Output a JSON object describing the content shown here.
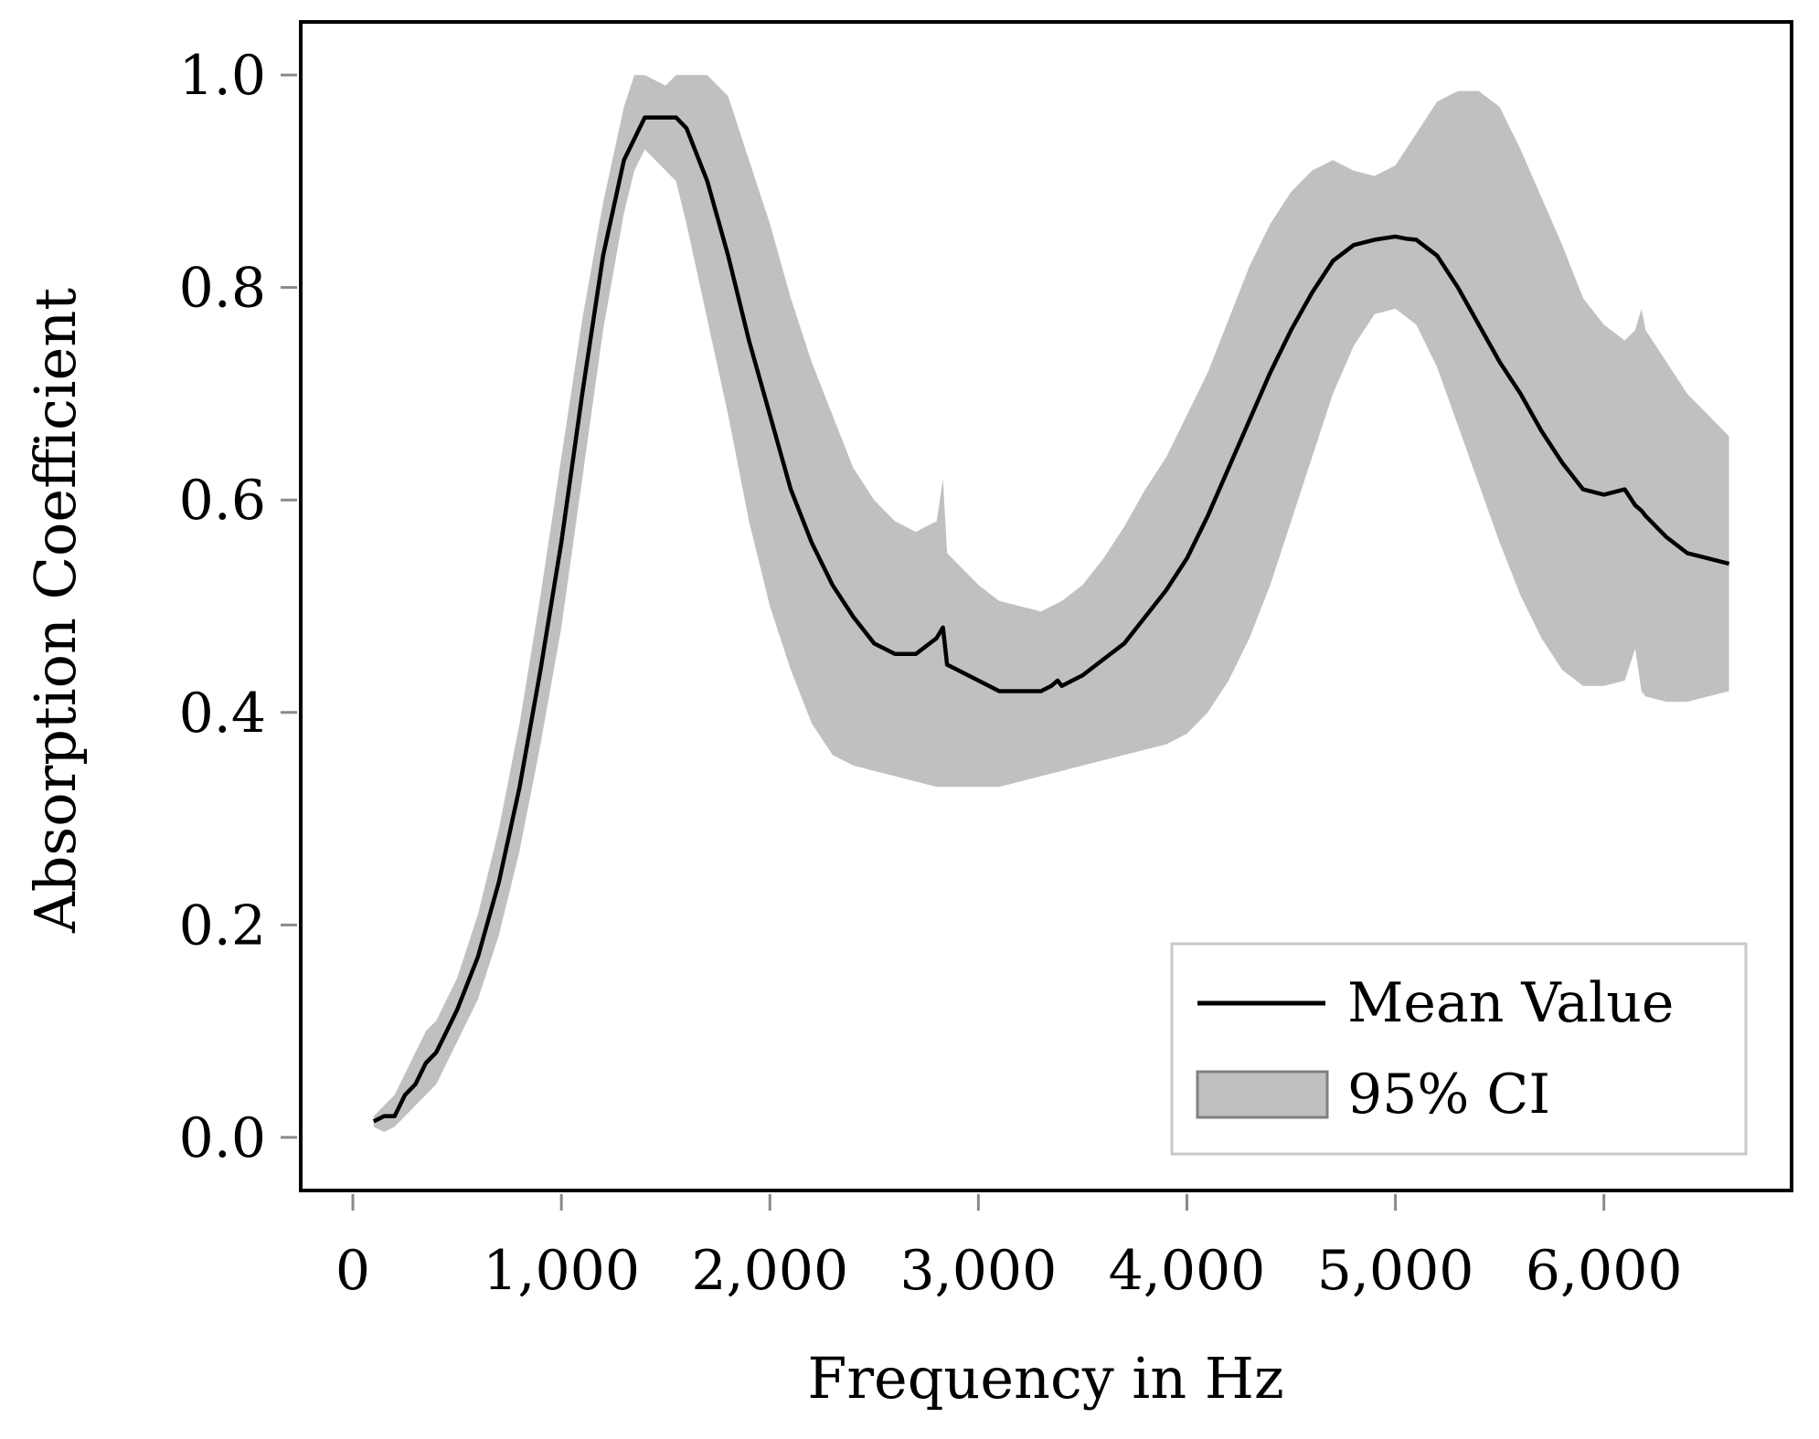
{
  "chart_data": {
    "type": "line",
    "title": "",
    "xlabel": "Frequency in Hz",
    "ylabel": "Absorption Coefficient",
    "xlim": [
      -250,
      6900
    ],
    "ylim": [
      -0.05,
      1.05
    ],
    "xticks": [
      0,
      1000,
      2000,
      3000,
      4000,
      5000,
      6000
    ],
    "xtick_labels": [
      "0",
      "1,000",
      "2,000",
      "3,000",
      "4,000",
      "5,000",
      "6,000"
    ],
    "yticks": [
      0.0,
      0.2,
      0.4,
      0.6,
      0.8,
      1.0
    ],
    "ytick_labels": [
      "0.0",
      "0.2",
      "0.4",
      "0.6",
      "0.8",
      "1.0"
    ],
    "grid": false,
    "legend_position": "bottom-right",
    "legend": [
      "Mean Value",
      "95% CI"
    ],
    "series": [
      {
        "name": "Mean Value",
        "kind": "line",
        "color": "#000000",
        "x": [
          100,
          150,
          200,
          250,
          300,
          350,
          400,
          450,
          500,
          600,
          700,
          800,
          900,
          1000,
          1100,
          1200,
          1300,
          1400,
          1500,
          1550,
          1600,
          1700,
          1800,
          1900,
          2000,
          2100,
          2200,
          2300,
          2400,
          2500,
          2600,
          2700,
          2800,
          2830,
          2850,
          2900,
          3000,
          3100,
          3200,
          3300,
          3350,
          3380,
          3400,
          3500,
          3600,
          3700,
          3800,
          3900,
          4000,
          4100,
          4200,
          4300,
          4400,
          4500,
          4600,
          4700,
          4800,
          4900,
          5000,
          5050,
          5100,
          5200,
          5300,
          5400,
          5500,
          5600,
          5700,
          5800,
          5900,
          6000,
          6100,
          6150,
          6180,
          6200,
          6300,
          6400,
          6500,
          6600
        ],
        "y": [
          0.015,
          0.02,
          0.02,
          0.04,
          0.05,
          0.07,
          0.08,
          0.1,
          0.12,
          0.17,
          0.24,
          0.33,
          0.44,
          0.56,
          0.7,
          0.83,
          0.92,
          0.96,
          0.96,
          0.96,
          0.95,
          0.9,
          0.83,
          0.75,
          0.68,
          0.61,
          0.56,
          0.52,
          0.49,
          0.465,
          0.455,
          0.455,
          0.47,
          0.48,
          0.445,
          0.44,
          0.43,
          0.42,
          0.42,
          0.42,
          0.425,
          0.43,
          0.425,
          0.435,
          0.45,
          0.465,
          0.49,
          0.515,
          0.545,
          0.585,
          0.63,
          0.675,
          0.72,
          0.76,
          0.795,
          0.825,
          0.84,
          0.845,
          0.848,
          0.846,
          0.845,
          0.83,
          0.8,
          0.765,
          0.73,
          0.7,
          0.665,
          0.635,
          0.61,
          0.605,
          0.61,
          0.595,
          0.59,
          0.585,
          0.565,
          0.55,
          0.545,
          0.54
        ]
      },
      {
        "name": "95% CI",
        "kind": "band",
        "color": "#c0c0c0",
        "edge_color": "#808080",
        "x": [
          100,
          150,
          200,
          250,
          300,
          350,
          400,
          450,
          500,
          600,
          700,
          800,
          900,
          1000,
          1100,
          1200,
          1300,
          1350,
          1400,
          1500,
          1550,
          1600,
          1700,
          1800,
          1900,
          2000,
          2100,
          2200,
          2300,
          2400,
          2500,
          2600,
          2700,
          2800,
          2830,
          2850,
          2900,
          3000,
          3100,
          3200,
          3300,
          3400,
          3500,
          3600,
          3700,
          3800,
          3900,
          4000,
          4100,
          4200,
          4300,
          4400,
          4500,
          4600,
          4700,
          4800,
          4900,
          5000,
          5100,
          5200,
          5300,
          5400,
          5500,
          5600,
          5700,
          5800,
          5900,
          6000,
          6100,
          6150,
          6180,
          6200,
          6300,
          6400,
          6500,
          6600
        ],
        "upper": [
          0.02,
          0.03,
          0.04,
          0.06,
          0.08,
          0.1,
          0.11,
          0.13,
          0.15,
          0.21,
          0.29,
          0.39,
          0.51,
          0.64,
          0.77,
          0.88,
          0.97,
          1.0,
          1.0,
          0.99,
          1.0,
          1.0,
          1.0,
          0.98,
          0.92,
          0.86,
          0.79,
          0.73,
          0.68,
          0.63,
          0.6,
          0.58,
          0.57,
          0.58,
          0.62,
          0.55,
          0.54,
          0.52,
          0.505,
          0.5,
          0.495,
          0.505,
          0.52,
          0.545,
          0.575,
          0.61,
          0.64,
          0.68,
          0.72,
          0.77,
          0.82,
          0.86,
          0.89,
          0.91,
          0.92,
          0.91,
          0.905,
          0.915,
          0.945,
          0.975,
          0.985,
          0.985,
          0.97,
          0.93,
          0.885,
          0.84,
          0.79,
          0.765,
          0.75,
          0.76,
          0.78,
          0.76,
          0.73,
          0.7,
          0.68,
          0.66
        ],
        "lower": [
          0.01,
          0.005,
          0.01,
          0.02,
          0.03,
          0.04,
          0.05,
          0.07,
          0.09,
          0.13,
          0.19,
          0.27,
          0.37,
          0.48,
          0.62,
          0.76,
          0.87,
          0.91,
          0.93,
          0.91,
          0.9,
          0.86,
          0.77,
          0.68,
          0.58,
          0.5,
          0.44,
          0.39,
          0.36,
          0.35,
          0.345,
          0.34,
          0.335,
          0.33,
          0.33,
          0.33,
          0.33,
          0.33,
          0.33,
          0.335,
          0.34,
          0.345,
          0.35,
          0.355,
          0.36,
          0.365,
          0.37,
          0.38,
          0.4,
          0.43,
          0.47,
          0.52,
          0.58,
          0.64,
          0.7,
          0.745,
          0.775,
          0.78,
          0.765,
          0.725,
          0.67,
          0.615,
          0.56,
          0.51,
          0.47,
          0.44,
          0.425,
          0.425,
          0.43,
          0.46,
          0.42,
          0.415,
          0.41,
          0.41,
          0.415,
          0.42
        ]
      }
    ]
  }
}
